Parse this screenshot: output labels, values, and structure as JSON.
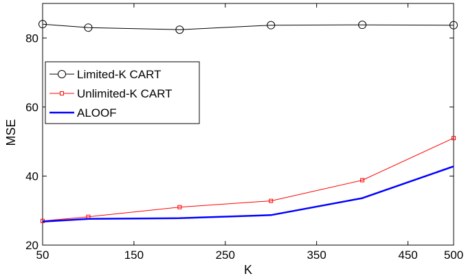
{
  "chart_data": {
    "type": "line",
    "title": "",
    "xlabel": "K",
    "ylabel": "MSE",
    "xlim": [
      50,
      500
    ],
    "ylim": [
      20,
      90
    ],
    "xticks": [
      50,
      150,
      250,
      350,
      450,
      500
    ],
    "xtick_labels": [
      "50",
      "150",
      "250",
      "350",
      "450",
      "500"
    ],
    "yticks": [
      20,
      40,
      60,
      80
    ],
    "ytick_labels": [
      "20",
      "40",
      "60",
      "80"
    ],
    "grid": false,
    "legend": {
      "placement": "upper-left",
      "entries": [
        "Limited-K CART",
        "Unlimited-K CART",
        "ALOOF"
      ]
    },
    "x": [
      50,
      100,
      200,
      300,
      400,
      500
    ],
    "series": [
      {
        "name": "Limited-K CART",
        "values": [
          84.0,
          83.0,
          82.4,
          83.7,
          83.8,
          83.7
        ],
        "color": "#000000",
        "marker": "circle",
        "line_width": 1
      },
      {
        "name": "Unlimited-K CART",
        "values": [
          27.0,
          28.2,
          31.0,
          32.8,
          38.8,
          51.0
        ],
        "color": "#ff0000",
        "marker": "square",
        "line_width": 1
      },
      {
        "name": "ALOOF",
        "values": [
          26.8,
          27.6,
          27.8,
          28.7,
          33.6,
          42.8
        ],
        "color": "#0000ff",
        "marker": "none",
        "line_width": 2.5
      }
    ]
  }
}
